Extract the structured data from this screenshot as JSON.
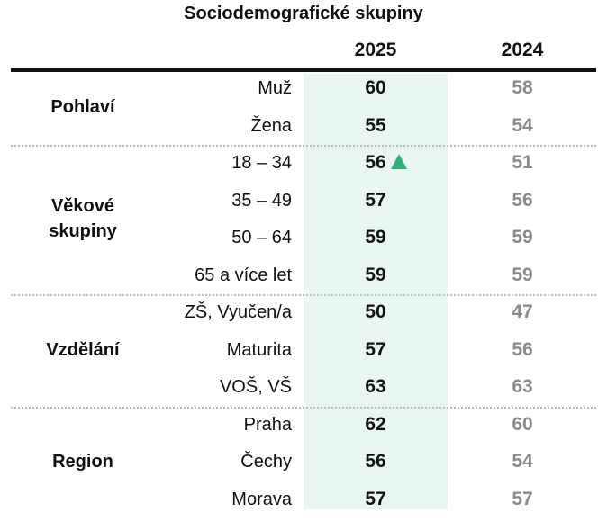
{
  "title": "Sociodemografické skupiny",
  "columns": [
    "2025",
    "2024"
  ],
  "colors": {
    "highlight_bg": "#eaf6f1",
    "up_marker": "#2db37a",
    "value_2024": "#8a8a8a"
  },
  "groups": [
    {
      "label": "Pohlaví",
      "rows": [
        {
          "label": "Muž",
          "v2025": 60,
          "v2024": 58
        },
        {
          "label": "Žena",
          "v2025": 55,
          "v2024": 54
        }
      ]
    },
    {
      "label": "Věkové skupiny",
      "rows": [
        {
          "label": "18 – 34",
          "v2025": 56,
          "v2024": 51,
          "marker": "up-triangle-icon"
        },
        {
          "label": "35 – 49",
          "v2025": 57,
          "v2024": 56
        },
        {
          "label": "50 – 64",
          "v2025": 59,
          "v2024": 59
        },
        {
          "label": "65 a více let",
          "v2025": 59,
          "v2024": 59
        }
      ]
    },
    {
      "label": "Vzdělání",
      "rows": [
        {
          "label": "ZŠ, Vyučen/a",
          "v2025": 50,
          "v2024": 47
        },
        {
          "label": "Maturita",
          "v2025": 57,
          "v2024": 56
        },
        {
          "label": "VOŠ, VŠ",
          "v2025": 63,
          "v2024": 63
        }
      ]
    },
    {
      "label": "Region",
      "rows": [
        {
          "label": "Praha",
          "v2025": 62,
          "v2024": 60
        },
        {
          "label": "Čechy",
          "v2025": 56,
          "v2024": 54
        },
        {
          "label": "Morava",
          "v2025": 57,
          "v2024": 57
        }
      ]
    }
  ],
  "chart_data": {
    "type": "table",
    "columns": [
      "2025",
      "2024"
    ],
    "rows": [
      {
        "group": "Pohlaví",
        "label": "Muž",
        "values": [
          60,
          58
        ]
      },
      {
        "group": "Pohlaví",
        "label": "Žena",
        "values": [
          55,
          54
        ]
      },
      {
        "group": "Věkové skupiny",
        "label": "18 – 34",
        "values": [
          56,
          51
        ]
      },
      {
        "group": "Věkové skupiny",
        "label": "35 – 49",
        "values": [
          57,
          56
        ]
      },
      {
        "group": "Věkové skupiny",
        "label": "50 – 64",
        "values": [
          59,
          59
        ]
      },
      {
        "group": "Věkové skupiny",
        "label": "65 a více let",
        "values": [
          59,
          59
        ]
      },
      {
        "group": "Vzdělání",
        "label": "ZŠ, Vyučen/a",
        "values": [
          50,
          47
        ]
      },
      {
        "group": "Vzdělání",
        "label": "Maturita",
        "values": [
          57,
          56
        ]
      },
      {
        "group": "Vzdělání",
        "label": "VOŠ, VŠ",
        "values": [
          63,
          63
        ]
      },
      {
        "group": "Region",
        "label": "Praha",
        "values": [
          62,
          60
        ]
      },
      {
        "group": "Region",
        "label": "Čechy",
        "values": [
          56,
          54
        ]
      },
      {
        "group": "Region",
        "label": "Morava",
        "values": [
          57,
          57
        ]
      }
    ]
  }
}
